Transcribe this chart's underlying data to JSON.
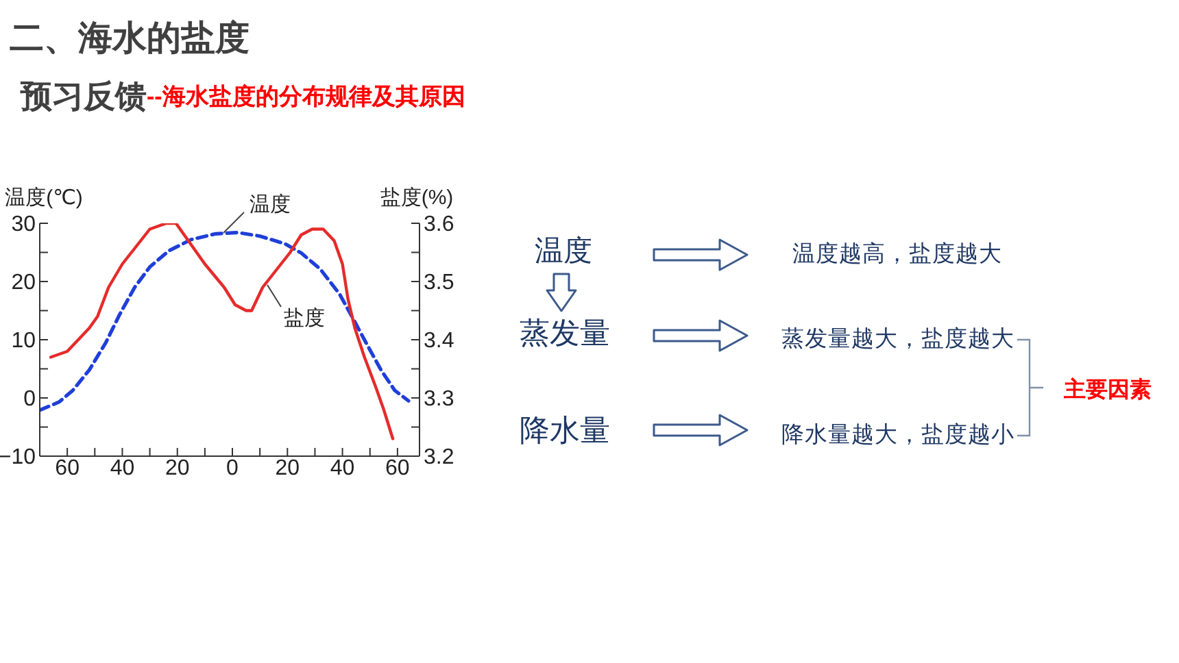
{
  "chart_data": [
    {
      "type": "line",
      "title": "二、海水的盐度",
      "subtitle": "预习反馈",
      "annotations": [
        "--海水盐度的分布规律及其原因"
      ],
      "ylabel": "温度(℃)",
      "y2label": "盐度(%)",
      "xlim": [
        -70,
        68
      ],
      "xticks": [
        {
          "value": -60,
          "label": "60"
        },
        {
          "value": -50,
          "label": null
        },
        {
          "value": -40,
          "label": "40"
        },
        {
          "value": -30,
          "label": null
        },
        {
          "value": -20,
          "label": "20"
        },
        {
          "value": -10,
          "label": null
        },
        0,
        {
          "value": 10,
          "label": null
        },
        20,
        {
          "value": 30,
          "label": null
        },
        40,
        {
          "value": 50,
          "label": null
        },
        60
      ],
      "ylim": [
        -10,
        30
      ],
      "yticks": [
        {
          "value": -10,
          "label": "−10"
        },
        {
          "value": -5,
          "label": null
        },
        0,
        {
          "value": 5,
          "label": null
        },
        10,
        {
          "value": 15,
          "label": null
        },
        20,
        {
          "value": 25,
          "label": null
        },
        30
      ],
      "y2lim": [
        3.2,
        3.6
      ],
      "y2ticks": [
        3.2,
        {
          "value": 3.25,
          "label": null
        },
        3.3,
        {
          "value": 3.35,
          "label": null
        },
        3.4,
        {
          "value": 3.45,
          "label": null
        },
        3.5,
        {
          "value": 3.55,
          "label": null
        },
        3.6
      ],
      "marker": "none",
      "series": [
        {
          "name": "温度",
          "color": "#1f3fd8",
          "line_style": "dashed",
          "x": [
            -70,
            -63,
            -58,
            -52,
            -46,
            -41,
            -35.5,
            -30,
            -23,
            -15,
            -6,
            2,
            10,
            19,
            25,
            32,
            39,
            44,
            49,
            54,
            59,
            64
          ],
          "values": [
            -2.1,
            -0.7,
            1.3,
            4.8,
            9.5,
            14.3,
            19,
            22.5,
            25.3,
            27.2,
            28.2,
            28.4,
            27.8,
            26.5,
            24.9,
            22.1,
            17.8,
            13.5,
            9.1,
            4.8,
            1.3,
            -0.5
          ]
        },
        {
          "name": "盐度",
          "color": "#e52b2b",
          "line_style": "solid",
          "axis": "y2",
          "x": [
            -66,
            -60,
            -52,
            -49,
            -45,
            -40,
            -35,
            -30,
            -24,
            -20.5,
            -16,
            -10,
            -3,
            1,
            5,
            7,
            11,
            16,
            21,
            25,
            29,
            33,
            37,
            40,
            42,
            44.5,
            48,
            52,
            55,
            58.3
          ],
          "values": [
            3.37,
            3.38,
            3.42,
            3.44,
            3.49,
            3.53,
            3.56,
            3.59,
            3.6,
            3.6,
            3.57,
            3.53,
            3.49,
            3.46,
            3.45,
            3.45,
            3.49,
            3.52,
            3.55,
            3.58,
            3.59,
            3.59,
            3.57,
            3.53,
            3.47,
            3.42,
            3.37,
            3.32,
            3.28,
            3.23
          ]
        }
      ]
    },
    {
      "type": "other",
      "annotations": [
        "温度",
        "蒸发量",
        "降水量",
        "温度越高，盐度越大",
        "蒸发量越大，盐度越大",
        "降水量越大，盐度越小",
        "主要因素"
      ]
    }
  ]
}
